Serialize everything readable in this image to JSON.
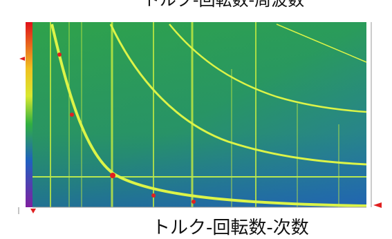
{
  "header": {
    "title": "トルク-回転数-周波数"
  },
  "caption": "トルク-回転数-次数"
}
